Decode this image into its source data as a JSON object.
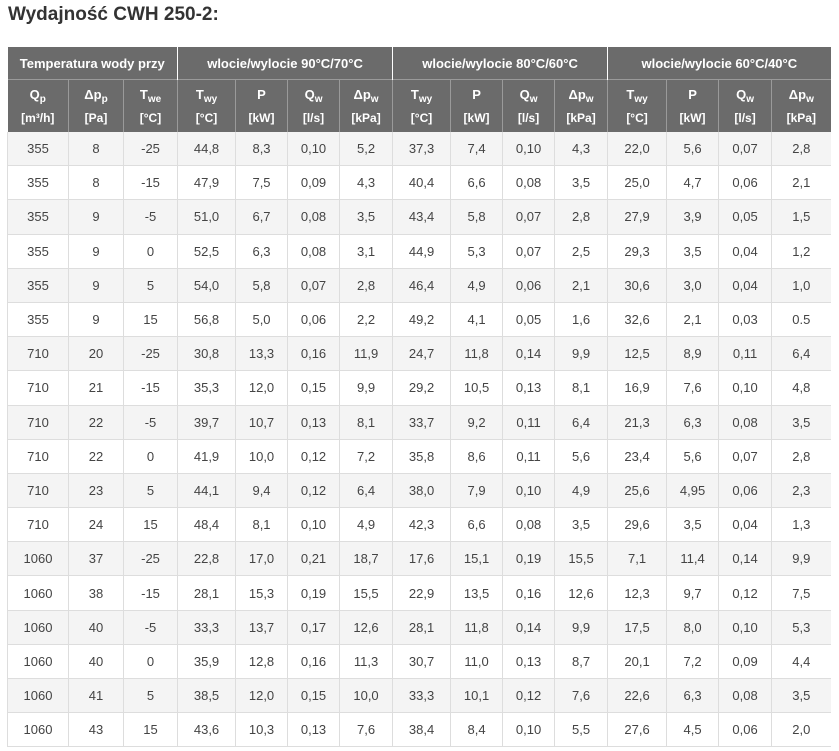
{
  "title": "Wydajność CWH 250-2:",
  "groups": [
    "Temperatura wody przy",
    "wlocie/wylocie 90°C/70°C",
    "wlocie/wylocie 80°C/60°C",
    "wlocie/wylocie 60°C/40°C"
  ],
  "columns": [
    {
      "sym": "Q",
      "sub": "p",
      "unit": "[m³/h]"
    },
    {
      "sym": "Δp",
      "sub": "p",
      "unit": "[Pa]"
    },
    {
      "sym": "T",
      "sub": "we",
      "unit": "[°C]"
    },
    {
      "sym": "T",
      "sub": "wy",
      "unit": "[°C]"
    },
    {
      "sym": "P",
      "sub": "",
      "unit": "[kW]"
    },
    {
      "sym": "Q",
      "sub": "w",
      "unit": "[l/s]"
    },
    {
      "sym": "Δp",
      "sub": "w",
      "unit": "[kPa]"
    },
    {
      "sym": "T",
      "sub": "wy",
      "unit": "[°C]"
    },
    {
      "sym": "P",
      "sub": "",
      "unit": "[kW]"
    },
    {
      "sym": "Q",
      "sub": "w",
      "unit": "[l/s]"
    },
    {
      "sym": "Δp",
      "sub": "w",
      "unit": "[kPa]"
    },
    {
      "sym": "T",
      "sub": "wy",
      "unit": "[°C]"
    },
    {
      "sym": "P",
      "sub": "",
      "unit": "[kW]"
    },
    {
      "sym": "Q",
      "sub": "w",
      "unit": "[l/s]"
    },
    {
      "sym": "Δp",
      "sub": "w",
      "unit": "[kPa]"
    }
  ],
  "rows": [
    [
      "355",
      "8",
      "-25",
      "44,8",
      "8,3",
      "0,10",
      "5,2",
      "37,3",
      "7,4",
      "0,10",
      "4,3",
      "22,0",
      "5,6",
      "0,07",
      "2,8"
    ],
    [
      "355",
      "8",
      "-15",
      "47,9",
      "7,5",
      "0,09",
      "4,3",
      "40,4",
      "6,6",
      "0,08",
      "3,5",
      "25,0",
      "4,7",
      "0,06",
      "2,1"
    ],
    [
      "355",
      "9",
      "-5",
      "51,0",
      "6,7",
      "0,08",
      "3,5",
      "43,4",
      "5,8",
      "0,07",
      "2,8",
      "27,9",
      "3,9",
      "0,05",
      "1,5"
    ],
    [
      "355",
      "9",
      "0",
      "52,5",
      "6,3",
      "0,08",
      "3,1",
      "44,9",
      "5,3",
      "0,07",
      "2,5",
      "29,3",
      "3,5",
      "0,04",
      "1,2"
    ],
    [
      "355",
      "9",
      "5",
      "54,0",
      "5,8",
      "0,07",
      "2,8",
      "46,4",
      "4,9",
      "0,06",
      "2,1",
      "30,6",
      "3,0",
      "0,04",
      "1,0"
    ],
    [
      "355",
      "9",
      "15",
      "56,8",
      "5,0",
      "0,06",
      "2,2",
      "49,2",
      "4,1",
      "0,05",
      "1,6",
      "32,6",
      "2,1",
      "0,03",
      "0.5"
    ],
    [
      "710",
      "20",
      "-25",
      "30,8",
      "13,3",
      "0,16",
      "11,9",
      "24,7",
      "11,8",
      "0,14",
      "9,9",
      "12,5",
      "8,9",
      "0,11",
      "6,4"
    ],
    [
      "710",
      "21",
      "-15",
      "35,3",
      "12,0",
      "0,15",
      "9,9",
      "29,2",
      "10,5",
      "0,13",
      "8,1",
      "16,9",
      "7,6",
      "0,10",
      "4,8"
    ],
    [
      "710",
      "22",
      "-5",
      "39,7",
      "10,7",
      "0,13",
      "8,1",
      "33,7",
      "9,2",
      "0,11",
      "6,4",
      "21,3",
      "6,3",
      "0,08",
      "3,5"
    ],
    [
      "710",
      "22",
      "0",
      "41,9",
      "10,0",
      "0,12",
      "7,2",
      "35,8",
      "8,6",
      "0,11",
      "5,6",
      "23,4",
      "5,6",
      "0,07",
      "2,8"
    ],
    [
      "710",
      "23",
      "5",
      "44,1",
      "9,4",
      "0,12",
      "6,4",
      "38,0",
      "7,9",
      "0,10",
      "4,9",
      "25,6",
      "4,95",
      "0,06",
      "2,3"
    ],
    [
      "710",
      "24",
      "15",
      "48,4",
      "8,1",
      "0,10",
      "4,9",
      "42,3",
      "6,6",
      "0,08",
      "3,5",
      "29,6",
      "3,5",
      "0,04",
      "1,3"
    ],
    [
      "1060",
      "37",
      "-25",
      "22,8",
      "17,0",
      "0,21",
      "18,7",
      "17,6",
      "15,1",
      "0,19",
      "15,5",
      "7,1",
      "11,4",
      "0,14",
      "9,9"
    ],
    [
      "1060",
      "38",
      "-15",
      "28,1",
      "15,3",
      "0,19",
      "15,5",
      "22,9",
      "13,5",
      "0,16",
      "12,6",
      "12,3",
      "9,7",
      "0,12",
      "7,5"
    ],
    [
      "1060",
      "40",
      "-5",
      "33,3",
      "13,7",
      "0,17",
      "12,6",
      "28,1",
      "11,8",
      "0,14",
      "9,9",
      "17,5",
      "8,0",
      "0,10",
      "5,3"
    ],
    [
      "1060",
      "40",
      "0",
      "35,9",
      "12,8",
      "0,16",
      "11,3",
      "30,7",
      "11,0",
      "0,13",
      "8,7",
      "20,1",
      "7,2",
      "0,09",
      "4,4"
    ],
    [
      "1060",
      "41",
      "5",
      "38,5",
      "12,0",
      "0,15",
      "10,0",
      "33,3",
      "10,1",
      "0,12",
      "7,6",
      "22,6",
      "6,3",
      "0,08",
      "3,5"
    ],
    [
      "1060",
      "43",
      "15",
      "43,6",
      "10,3",
      "0,13",
      "7,6",
      "38,4",
      "8,4",
      "0,10",
      "5,5",
      "27,6",
      "4,5",
      "0,06",
      "2,0"
    ]
  ]
}
